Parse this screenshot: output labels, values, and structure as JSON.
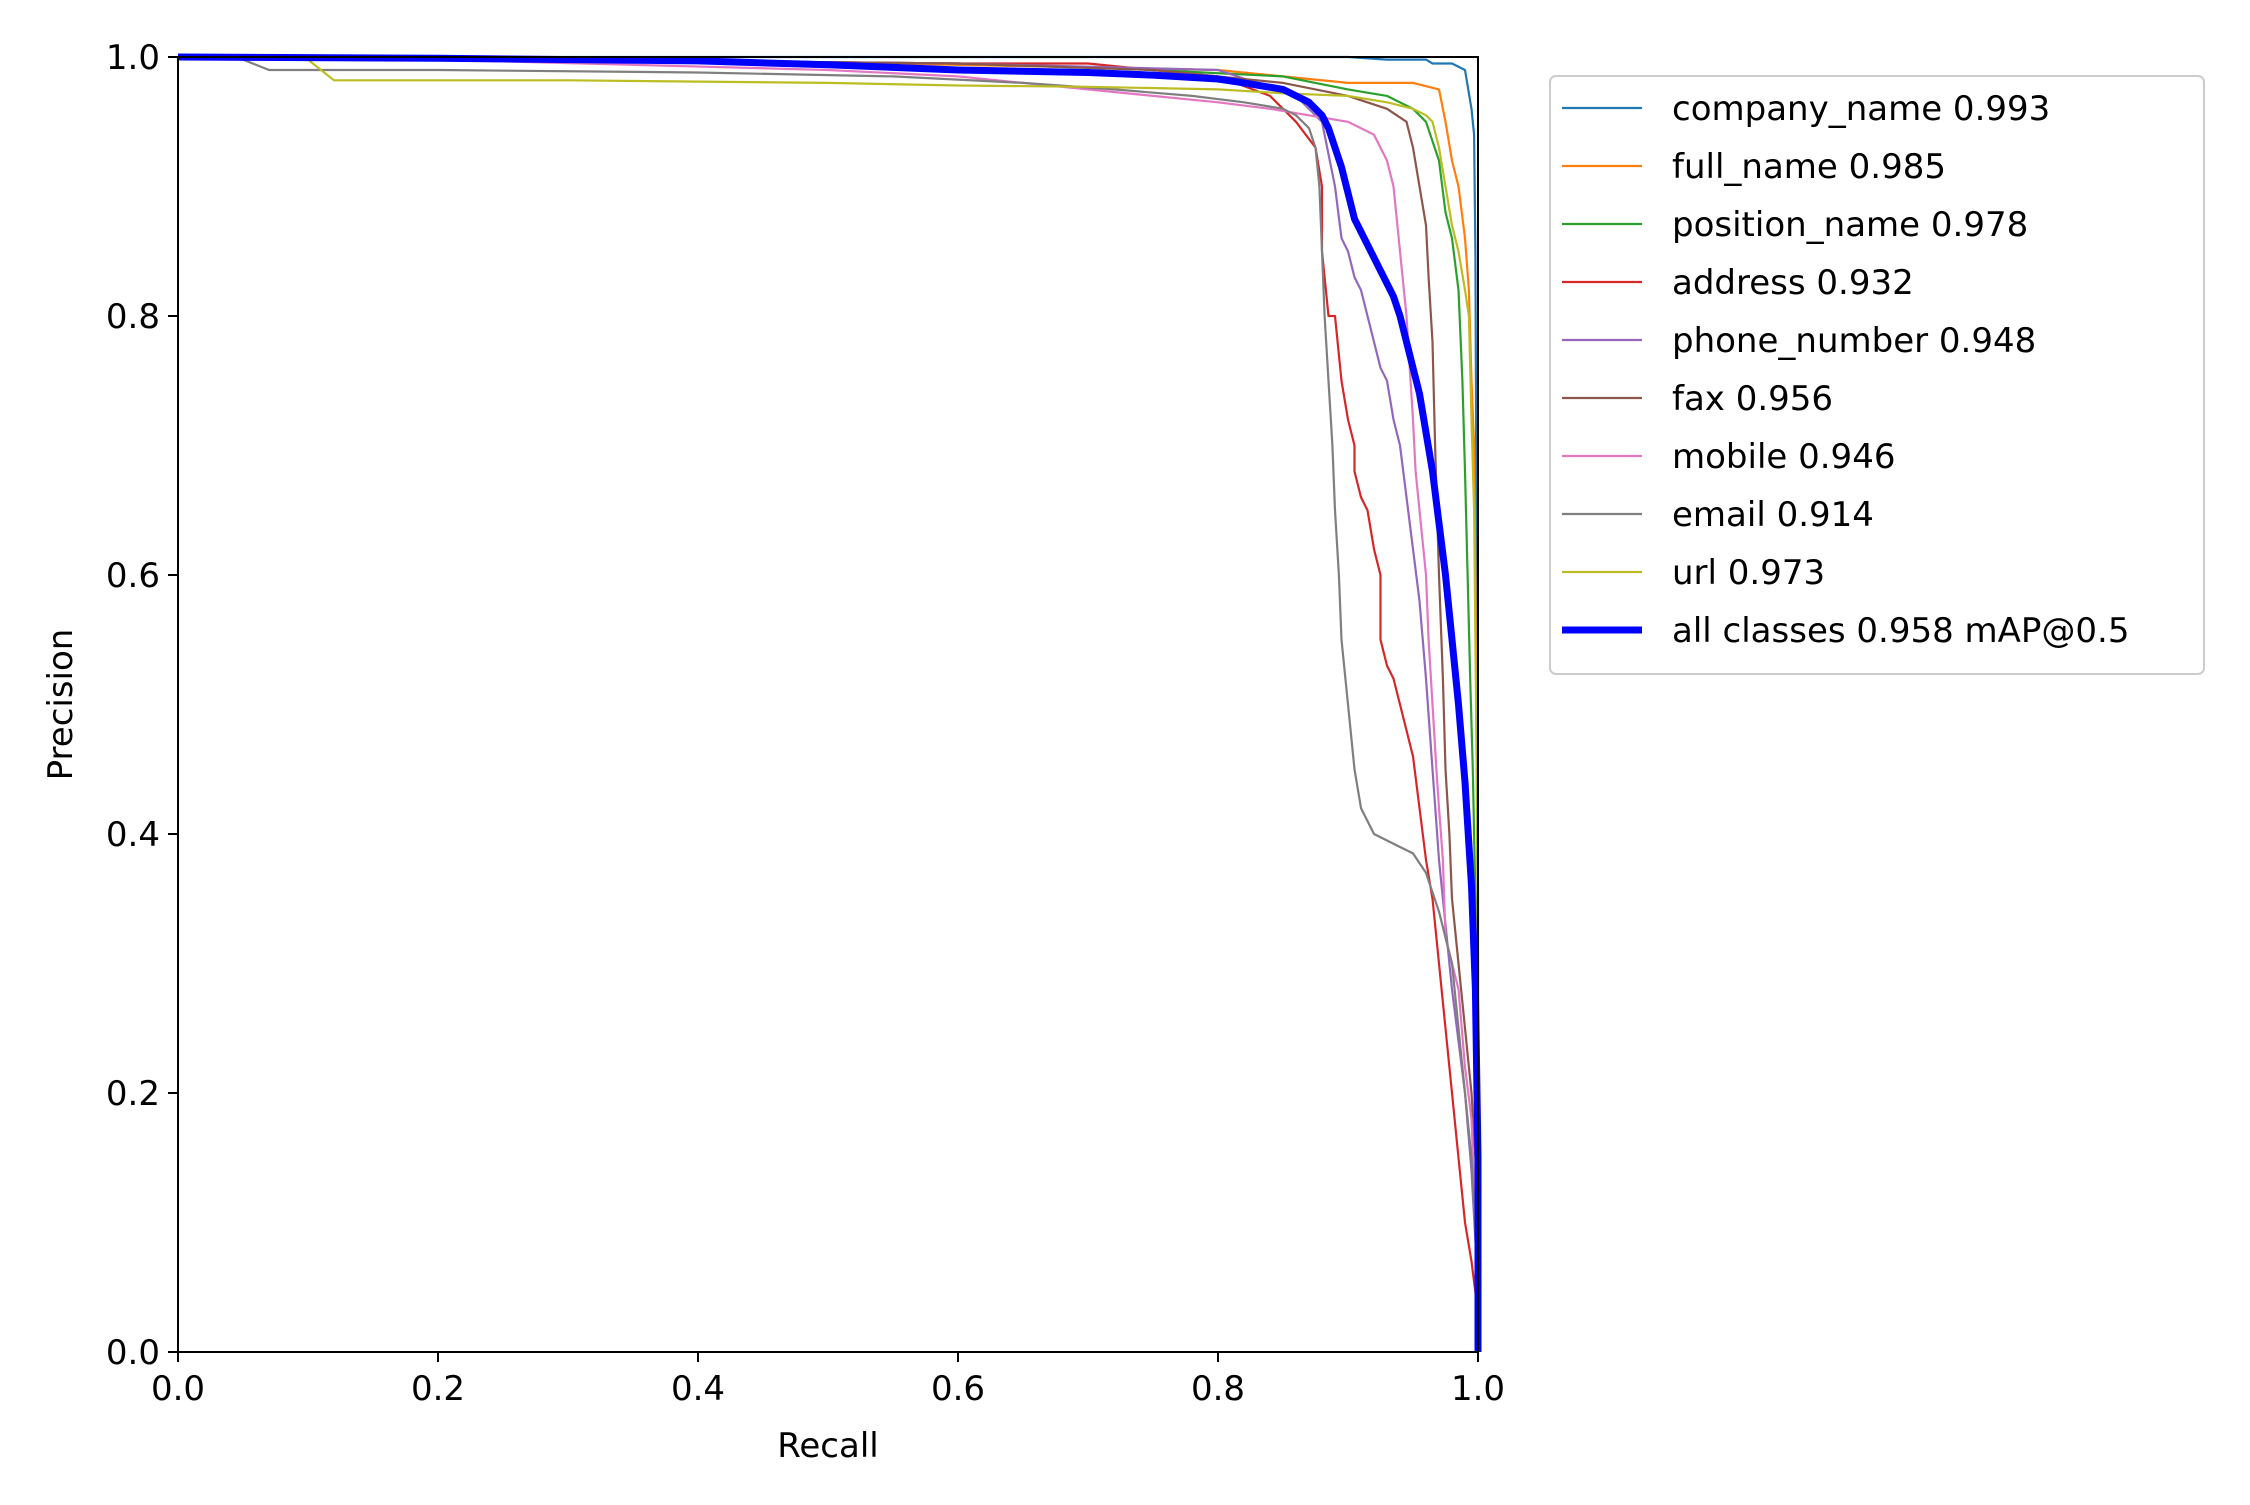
{
  "chart_data": {
    "type": "line",
    "title": "",
    "xlabel": "Recall",
    "ylabel": "Precision",
    "xlim": [
      0,
      1
    ],
    "ylim": [
      0,
      1
    ],
    "x_ticks": [
      "0.0",
      "0.2",
      "0.4",
      "0.6",
      "0.8",
      "1.0"
    ],
    "y_ticks": [
      "0.0",
      "0.2",
      "0.4",
      "0.6",
      "0.8",
      "1.0"
    ],
    "grid": false,
    "legend_position": "outside-top-right",
    "series": [
      {
        "name": "company_name",
        "label": "company_name 0.993",
        "color": "#1f77b4",
        "points": [
          [
            0,
            1
          ],
          [
            0.2,
            1
          ],
          [
            0.4,
            1
          ],
          [
            0.6,
            1
          ],
          [
            0.8,
            1
          ],
          [
            0.9,
            1
          ],
          [
            0.93,
            0.998
          ],
          [
            0.96,
            0.998
          ],
          [
            0.965,
            0.995
          ],
          [
            0.98,
            0.995
          ],
          [
            0.99,
            0.99
          ],
          [
            0.995,
            0.96
          ],
          [
            0.997,
            0.94
          ],
          [
            0.998,
            0.85
          ],
          [
            0.999,
            0.6
          ],
          [
            1.0,
            0.35
          ],
          [
            1.0,
            0.0
          ]
        ]
      },
      {
        "name": "full_name",
        "label": "full_name 0.985",
        "color": "#ff7f0e",
        "points": [
          [
            0,
            1
          ],
          [
            0.3,
            0.998
          ],
          [
            0.55,
            0.995
          ],
          [
            0.7,
            0.992
          ],
          [
            0.8,
            0.99
          ],
          [
            0.85,
            0.985
          ],
          [
            0.9,
            0.98
          ],
          [
            0.93,
            0.98
          ],
          [
            0.95,
            0.98
          ],
          [
            0.97,
            0.975
          ],
          [
            0.975,
            0.95
          ],
          [
            0.98,
            0.92
          ],
          [
            0.985,
            0.9
          ],
          [
            0.99,
            0.86
          ],
          [
            0.993,
            0.82
          ],
          [
            0.995,
            0.75
          ],
          [
            0.997,
            0.7
          ],
          [
            0.998,
            0.6
          ],
          [
            0.999,
            0.45
          ],
          [
            1.0,
            0.3
          ],
          [
            1.0,
            0.0
          ]
        ]
      },
      {
        "name": "position_name",
        "label": "position_name 0.978",
        "color": "#2ca02c",
        "points": [
          [
            0,
            1
          ],
          [
            0.3,
            0.998
          ],
          [
            0.6,
            0.995
          ],
          [
            0.75,
            0.99
          ],
          [
            0.85,
            0.985
          ],
          [
            0.9,
            0.975
          ],
          [
            0.93,
            0.97
          ],
          [
            0.95,
            0.96
          ],
          [
            0.96,
            0.95
          ],
          [
            0.97,
            0.92
          ],
          [
            0.975,
            0.88
          ],
          [
            0.98,
            0.86
          ],
          [
            0.985,
            0.82
          ],
          [
            0.988,
            0.75
          ],
          [
            0.99,
            0.68
          ],
          [
            0.992,
            0.6
          ],
          [
            0.994,
            0.52
          ],
          [
            0.996,
            0.45
          ],
          [
            0.998,
            0.35
          ],
          [
            0.999,
            0.25
          ],
          [
            1.0,
            0.15
          ],
          [
            1.0,
            0.0
          ]
        ]
      },
      {
        "name": "address",
        "label": "address 0.932",
        "color": "#d62728",
        "points": [
          [
            0,
            1
          ],
          [
            0.3,
            0.998
          ],
          [
            0.6,
            0.995
          ],
          [
            0.7,
            0.995
          ],
          [
            0.75,
            0.99
          ],
          [
            0.8,
            0.985
          ],
          [
            0.84,
            0.97
          ],
          [
            0.86,
            0.95
          ],
          [
            0.875,
            0.93
          ],
          [
            0.88,
            0.9
          ],
          [
            0.88,
            0.85
          ],
          [
            0.885,
            0.8
          ],
          [
            0.89,
            0.8
          ],
          [
            0.895,
            0.75
          ],
          [
            0.9,
            0.72
          ],
          [
            0.905,
            0.7
          ],
          [
            0.905,
            0.68
          ],
          [
            0.91,
            0.66
          ],
          [
            0.915,
            0.65
          ],
          [
            0.92,
            0.62
          ],
          [
            0.925,
            0.6
          ],
          [
            0.925,
            0.55
          ],
          [
            0.93,
            0.53
          ],
          [
            0.935,
            0.52
          ],
          [
            0.94,
            0.5
          ],
          [
            0.945,
            0.48
          ],
          [
            0.95,
            0.46
          ],
          [
            0.955,
            0.42
          ],
          [
            0.96,
            0.38
          ],
          [
            0.965,
            0.35
          ],
          [
            0.97,
            0.3
          ],
          [
            0.975,
            0.25
          ],
          [
            0.98,
            0.2
          ],
          [
            0.985,
            0.15
          ],
          [
            0.99,
            0.1
          ],
          [
            0.995,
            0.07
          ],
          [
            1.0,
            0.03
          ],
          [
            1.0,
            0.0
          ]
        ]
      },
      {
        "name": "phone_number",
        "label": "phone_number 0.948",
        "color": "#9467bd",
        "points": [
          [
            0,
            1
          ],
          [
            0.3,
            0.998
          ],
          [
            0.6,
            0.995
          ],
          [
            0.8,
            0.99
          ],
          [
            0.86,
            0.97
          ],
          [
            0.88,
            0.95
          ],
          [
            0.89,
            0.9
          ],
          [
            0.895,
            0.86
          ],
          [
            0.9,
            0.85
          ],
          [
            0.905,
            0.83
          ],
          [
            0.91,
            0.82
          ],
          [
            0.915,
            0.8
          ],
          [
            0.92,
            0.78
          ],
          [
            0.925,
            0.76
          ],
          [
            0.93,
            0.75
          ],
          [
            0.935,
            0.72
          ],
          [
            0.94,
            0.7
          ],
          [
            0.945,
            0.66
          ],
          [
            0.95,
            0.62
          ],
          [
            0.955,
            0.58
          ],
          [
            0.96,
            0.52
          ],
          [
            0.965,
            0.45
          ],
          [
            0.97,
            0.38
          ],
          [
            0.975,
            0.33
          ],
          [
            0.98,
            0.28
          ],
          [
            0.985,
            0.24
          ],
          [
            0.99,
            0.2
          ],
          [
            0.995,
            0.14
          ],
          [
            1.0,
            0.05
          ],
          [
            1.0,
            0.0
          ]
        ]
      },
      {
        "name": "fax",
        "label": "fax 0.956",
        "color": "#8c564b",
        "points": [
          [
            0,
            1
          ],
          [
            0.3,
            0.998
          ],
          [
            0.6,
            0.995
          ],
          [
            0.75,
            0.99
          ],
          [
            0.85,
            0.98
          ],
          [
            0.9,
            0.97
          ],
          [
            0.93,
            0.96
          ],
          [
            0.945,
            0.95
          ],
          [
            0.95,
            0.93
          ],
          [
            0.955,
            0.9
          ],
          [
            0.96,
            0.87
          ],
          [
            0.962,
            0.83
          ],
          [
            0.965,
            0.78
          ],
          [
            0.967,
            0.7
          ],
          [
            0.97,
            0.6
          ],
          [
            0.973,
            0.52
          ],
          [
            0.975,
            0.45
          ],
          [
            0.978,
            0.4
          ],
          [
            0.98,
            0.35
          ],
          [
            0.985,
            0.3
          ],
          [
            0.99,
            0.25
          ],
          [
            0.995,
            0.2
          ],
          [
            0.998,
            0.15
          ],
          [
            1.0,
            0.08
          ],
          [
            1.0,
            0.0
          ]
        ]
      },
      {
        "name": "mobile",
        "label": "mobile 0.946",
        "color": "#e377c2",
        "points": [
          [
            0,
            1
          ],
          [
            0.2,
            0.998
          ],
          [
            0.5,
            0.99
          ],
          [
            0.6,
            0.985
          ],
          [
            0.65,
            0.98
          ],
          [
            0.7,
            0.975
          ],
          [
            0.75,
            0.97
          ],
          [
            0.8,
            0.965
          ],
          [
            0.84,
            0.96
          ],
          [
            0.87,
            0.955
          ],
          [
            0.9,
            0.95
          ],
          [
            0.92,
            0.94
          ],
          [
            0.93,
            0.92
          ],
          [
            0.935,
            0.9
          ],
          [
            0.94,
            0.85
          ],
          [
            0.945,
            0.8
          ],
          [
            0.95,
            0.72
          ],
          [
            0.952,
            0.68
          ],
          [
            0.955,
            0.65
          ],
          [
            0.96,
            0.6
          ],
          [
            0.962,
            0.55
          ],
          [
            0.965,
            0.5
          ],
          [
            0.968,
            0.45
          ],
          [
            0.97,
            0.42
          ],
          [
            0.973,
            0.38
          ],
          [
            0.975,
            0.32
          ],
          [
            0.98,
            0.3
          ],
          [
            0.985,
            0.28
          ],
          [
            0.99,
            0.22
          ],
          [
            0.995,
            0.18
          ],
          [
            1.0,
            0.05
          ],
          [
            1.0,
            0.0
          ]
        ]
      },
      {
        "name": "email",
        "label": "email 0.914",
        "color": "#7f7f7f",
        "points": [
          [
            0,
            1
          ],
          [
            0.05,
            0.998
          ],
          [
            0.07,
            0.99
          ],
          [
            0.2,
            0.99
          ],
          [
            0.4,
            0.988
          ],
          [
            0.55,
            0.985
          ],
          [
            0.65,
            0.98
          ],
          [
            0.72,
            0.975
          ],
          [
            0.78,
            0.97
          ],
          [
            0.82,
            0.965
          ],
          [
            0.85,
            0.96
          ],
          [
            0.86,
            0.955
          ],
          [
            0.87,
            0.945
          ],
          [
            0.875,
            0.93
          ],
          [
            0.878,
            0.9
          ],
          [
            0.88,
            0.85
          ],
          [
            0.882,
            0.8
          ],
          [
            0.885,
            0.75
          ],
          [
            0.888,
            0.7
          ],
          [
            0.89,
            0.65
          ],
          [
            0.893,
            0.6
          ],
          [
            0.895,
            0.55
          ],
          [
            0.9,
            0.5
          ],
          [
            0.905,
            0.45
          ],
          [
            0.91,
            0.42
          ],
          [
            0.92,
            0.4
          ],
          [
            0.93,
            0.395
          ],
          [
            0.94,
            0.39
          ],
          [
            0.95,
            0.385
          ],
          [
            0.96,
            0.37
          ],
          [
            0.97,
            0.34
          ],
          [
            0.98,
            0.3
          ],
          [
            0.985,
            0.25
          ],
          [
            0.99,
            0.2
          ],
          [
            0.995,
            0.15
          ],
          [
            1.0,
            0.05
          ],
          [
            1.0,
            0.0
          ]
        ]
      },
      {
        "name": "url",
        "label": "url 0.973",
        "color": "#bcbd22",
        "points": [
          [
            0,
            1
          ],
          [
            0.1,
            0.998
          ],
          [
            0.11,
            0.99
          ],
          [
            0.12,
            0.982
          ],
          [
            0.3,
            0.982
          ],
          [
            0.5,
            0.98
          ],
          [
            0.6,
            0.978
          ],
          [
            0.7,
            0.977
          ],
          [
            0.8,
            0.975
          ],
          [
            0.85,
            0.972
          ],
          [
            0.9,
            0.97
          ],
          [
            0.93,
            0.965
          ],
          [
            0.95,
            0.96
          ],
          [
            0.96,
            0.955
          ],
          [
            0.965,
            0.95
          ],
          [
            0.97,
            0.93
          ],
          [
            0.975,
            0.9
          ],
          [
            0.98,
            0.87
          ],
          [
            0.985,
            0.85
          ],
          [
            0.99,
            0.82
          ],
          [
            0.993,
            0.8
          ],
          [
            0.995,
            0.72
          ],
          [
            0.997,
            0.65
          ],
          [
            0.998,
            0.55
          ],
          [
            0.999,
            0.45
          ],
          [
            1.0,
            0.3
          ],
          [
            1.0,
            0.0
          ]
        ]
      },
      {
        "name": "all classes",
        "label": "all classes 0.958 mAP@0.5",
        "color": "#0000ff",
        "bold": true,
        "points": [
          [
            0,
            1
          ],
          [
            0.2,
            0.999
          ],
          [
            0.4,
            0.997
          ],
          [
            0.5,
            0.994
          ],
          [
            0.55,
            0.992
          ],
          [
            0.6,
            0.99
          ],
          [
            0.7,
            0.988
          ],
          [
            0.75,
            0.986
          ],
          [
            0.8,
            0.983
          ],
          [
            0.82,
            0.98
          ],
          [
            0.85,
            0.975
          ],
          [
            0.87,
            0.965
          ],
          [
            0.88,
            0.955
          ],
          [
            0.885,
            0.945
          ],
          [
            0.89,
            0.93
          ],
          [
            0.895,
            0.915
          ],
          [
            0.9,
            0.895
          ],
          [
            0.905,
            0.875
          ],
          [
            0.91,
            0.865
          ],
          [
            0.915,
            0.855
          ],
          [
            0.92,
            0.845
          ],
          [
            0.925,
            0.835
          ],
          [
            0.93,
            0.825
          ],
          [
            0.935,
            0.815
          ],
          [
            0.94,
            0.8
          ],
          [
            0.945,
            0.78
          ],
          [
            0.95,
            0.76
          ],
          [
            0.955,
            0.74
          ],
          [
            0.96,
            0.71
          ],
          [
            0.965,
            0.68
          ],
          [
            0.97,
            0.64
          ],
          [
            0.975,
            0.6
          ],
          [
            0.98,
            0.55
          ],
          [
            0.985,
            0.5
          ],
          [
            0.99,
            0.44
          ],
          [
            0.995,
            0.36
          ],
          [
            0.998,
            0.28
          ],
          [
            1.0,
            0.15
          ],
          [
            1.0,
            0.0
          ]
        ]
      }
    ]
  }
}
